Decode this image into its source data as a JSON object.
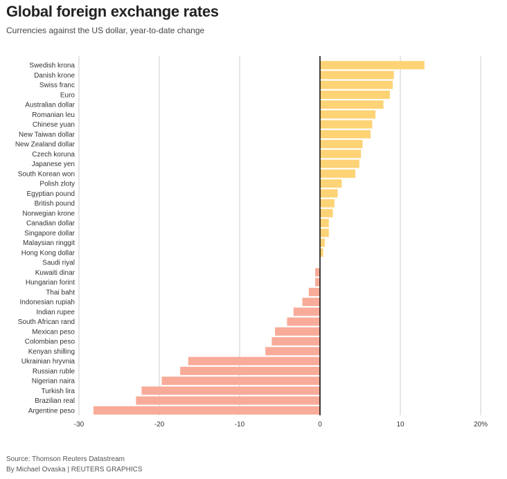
{
  "chart_data": {
    "type": "bar",
    "orientation": "horizontal",
    "title": "Global foreign exchange rates",
    "subtitle": "Currencies against the US dollar, year-to-date change",
    "categories": [
      "Swedish krona",
      "Danish krone",
      "Swiss franc",
      "Euro",
      "Australian dollar",
      "Romanian leu",
      "Chinese yuan",
      "New Taiwan dollar",
      "New Zealand dollar",
      "Czech koruna",
      "Japanese yen",
      "South Korean won",
      "Polish zloty",
      "Egyptian pound",
      "British pound",
      "Norwegian krone",
      "Canadian dollar",
      "Singapore dollar",
      "Malaysian ringgit",
      "Hong Kong dollar",
      "Saudi riyal",
      "Kuwaiti dinar",
      "Hungarian forint",
      "Thai baht",
      "Indonesian rupiah",
      "Indian rupee",
      "South African rand",
      "Mexican peso",
      "Colombian peso",
      "Kenyan shilling",
      "Ukrainian hryvnia",
      "Russian ruble",
      "Nigerian naira",
      "Turkish lira",
      "Brazilian real",
      "Argentine peso"
    ],
    "values": [
      13.0,
      9.2,
      9.05,
      8.7,
      7.9,
      6.9,
      6.5,
      6.3,
      5.3,
      5.1,
      4.9,
      4.4,
      2.7,
      2.2,
      1.8,
      1.6,
      1.1,
      1.1,
      0.6,
      0.4,
      0,
      -0.6,
      -0.6,
      -1.4,
      -2.2,
      -3.3,
      -4.1,
      -5.6,
      -6.0,
      -6.8,
      -16.4,
      -17.4,
      -19.7,
      -22.2,
      -22.9,
      -28.2
    ],
    "xlim": [
      -30,
      20
    ],
    "xticks": [
      "-30",
      "-20",
      "-10",
      "0",
      "10",
      "20%"
    ],
    "xtick_values": [
      -30,
      -20,
      -10,
      0,
      10,
      20
    ],
    "grid": true,
    "colors": {
      "positive": "#fdd376",
      "negative": "#f8ab98",
      "grid": "#cccccc",
      "zero": "#000000"
    }
  },
  "footer": {
    "source": "Source: Thomson Reuters Datastream",
    "byline": "By Michael Ovaska | REUTERS GRAPHICS"
  }
}
